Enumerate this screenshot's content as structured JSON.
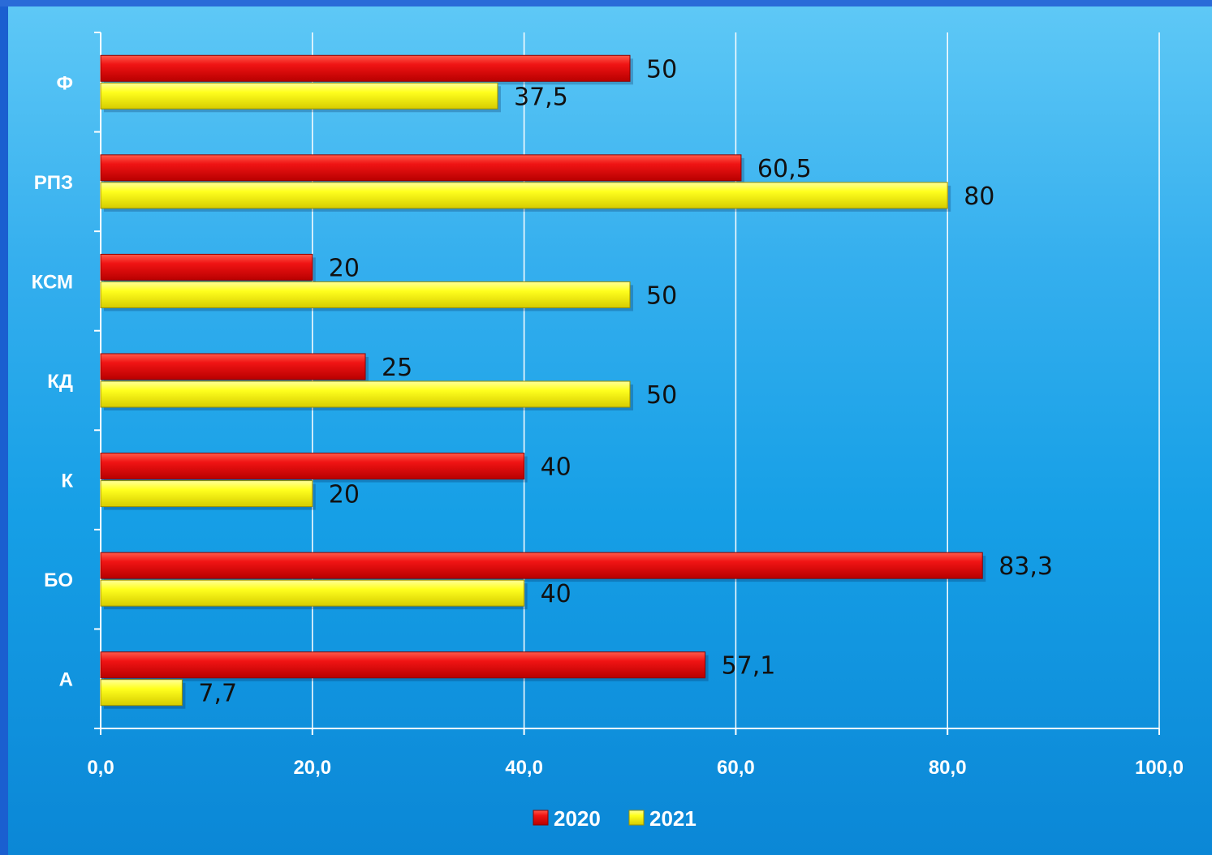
{
  "page_title": "",
  "chart_data": {
    "type": "bar",
    "orientation": "horizontal",
    "categories": [
      "Ф",
      "РПЗ",
      "КСМ",
      "КД",
      "К",
      "БО",
      "А"
    ],
    "series": [
      {
        "name": "2020",
        "color": "#e81010",
        "values": [
          50,
          60.5,
          20,
          25,
          40,
          83.3,
          57.1
        ],
        "labels": [
          "50",
          "60,5",
          "20",
          "25",
          "40",
          "83,3",
          "57,1"
        ]
      },
      {
        "name": "2021",
        "color": "#ffff14",
        "values": [
          37.5,
          80,
          50,
          50,
          20,
          40,
          7.7
        ],
        "labels": [
          "37,5",
          "80",
          "50",
          "50",
          "20",
          "40",
          "7,7"
        ]
      }
    ],
    "x_ticks": [
      "0,0",
      "20,0",
      "40,0",
      "60,0",
      "80,0",
      "100,0"
    ],
    "xlim": [
      0,
      100
    ],
    "grid": true,
    "legend_position": "bottom"
  }
}
